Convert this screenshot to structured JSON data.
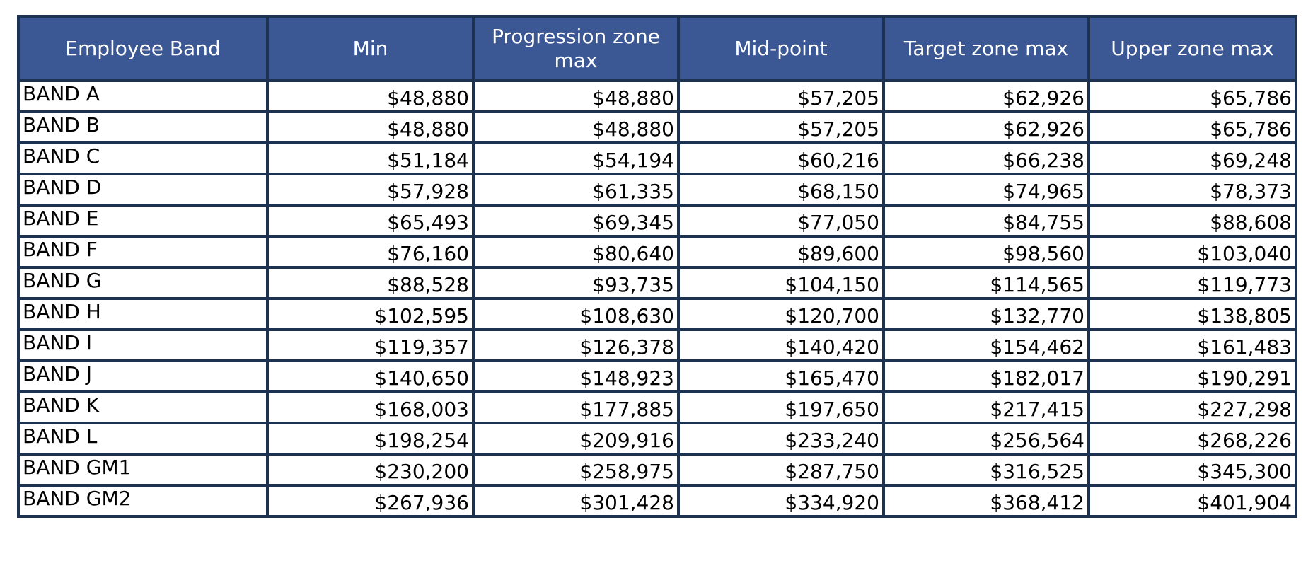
{
  "table": {
    "header": [
      "Employee Band",
      "Min",
      "Progression zone max",
      "Mid-point",
      "Target zone max",
      "Upper zone max"
    ],
    "rows": [
      [
        "BAND A",
        "$48,880",
        "$48,880",
        "$57,205",
        "$62,926",
        "$65,786"
      ],
      [
        "BAND B",
        "$48,880",
        "$48,880",
        "$57,205",
        "$62,926",
        "$65,786"
      ],
      [
        "BAND C",
        "$51,184",
        "$54,194",
        "$60,216",
        "$66,238",
        "$69,248"
      ],
      [
        "BAND D",
        "$57,928",
        "$61,335",
        "$68,150",
        "$74,965",
        "$78,373"
      ],
      [
        "BAND E",
        "$65,493",
        "$69,345",
        "$77,050",
        "$84,755",
        "$88,608"
      ],
      [
        "BAND F",
        "$76,160",
        "$80,640",
        "$89,600",
        "$98,560",
        "$103,040"
      ],
      [
        "BAND G",
        "$88,528",
        "$93,735",
        "$104,150",
        "$114,565",
        "$119,773"
      ],
      [
        "BAND H",
        "$102,595",
        "$108,630",
        "$120,700",
        "$132,770",
        "$138,805"
      ],
      [
        "BAND I",
        "$119,357",
        "$126,378",
        "$140,420",
        "$154,462",
        "$161,483"
      ],
      [
        "BAND J",
        "$140,650",
        "$148,923",
        "$165,470",
        "$182,017",
        "$190,291"
      ],
      [
        "BAND K",
        "$168,003",
        "$177,885",
        "$197,650",
        "$217,415",
        "$227,298"
      ],
      [
        "BAND L",
        "$198,254",
        "$209,916",
        "$233,240",
        "$256,564",
        "$268,226"
      ],
      [
        "BAND GM1",
        "$230,200",
        "$258,975",
        "$287,750",
        "$316,525",
        "$345,300"
      ],
      [
        "BAND GM2",
        "$267,936",
        "$301,428",
        "$334,920",
        "$368,412",
        "$401,904"
      ]
    ]
  }
}
